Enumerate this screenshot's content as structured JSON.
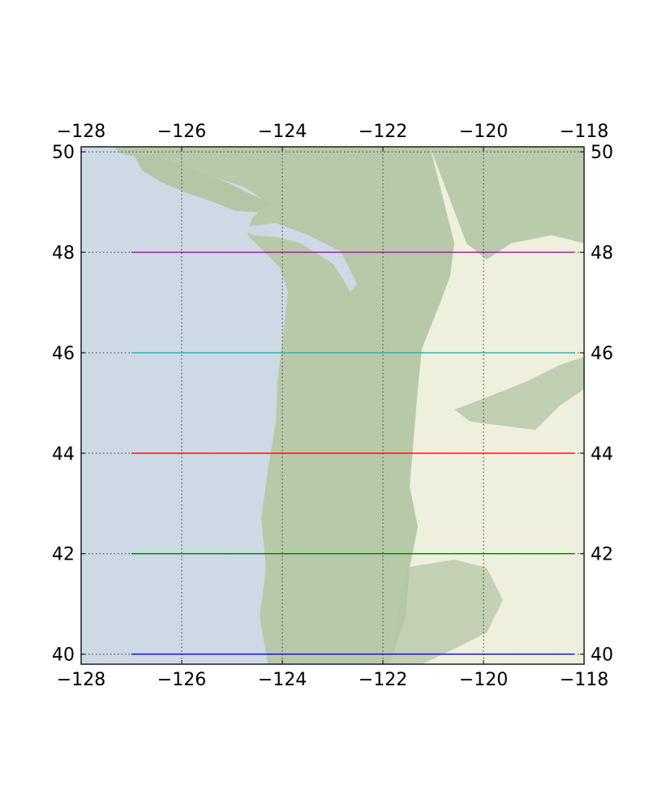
{
  "chart_data": {
    "type": "line",
    "title": "",
    "xlabel": "",
    "ylabel": "",
    "xlim": [
      -128,
      -118
    ],
    "ylim": [
      39.8,
      50.1
    ],
    "grid": "dotted",
    "x_ticks": [
      -128,
      -126,
      -124,
      -122,
      -120,
      -118
    ],
    "y_ticks": [
      40,
      42,
      44,
      46,
      48,
      50
    ],
    "x_tick_labels": [
      "−128",
      "−126",
      "−124",
      "−122",
      "−120",
      "−118"
    ],
    "y_tick_labels": [
      "40",
      "42",
      "44",
      "46",
      "48",
      "50"
    ],
    "series": [
      {
        "x": [
          -127,
          -118.2
        ],
        "values": [
          48,
          48
        ],
        "color": "#bf00bf"
      },
      {
        "x": [
          -127,
          -118.2
        ],
        "values": [
          46,
          46
        ],
        "color": "#00bfbf"
      },
      {
        "x": [
          -127,
          -118.2
        ],
        "values": [
          44,
          44
        ],
        "color": "#ff0000"
      },
      {
        "x": [
          -127,
          -118.2
        ],
        "values": [
          42,
          42
        ],
        "color": "#008000"
      },
      {
        "x": [
          -127,
          -118.2
        ],
        "values": [
          40,
          40
        ],
        "color": "#0000ff"
      }
    ]
  },
  "colors": {
    "ocean": "#cdd9e4",
    "forest": "#b4c6a6",
    "dry_land": "#eeefdc",
    "grid": "#333333",
    "frame": "#000000"
  }
}
